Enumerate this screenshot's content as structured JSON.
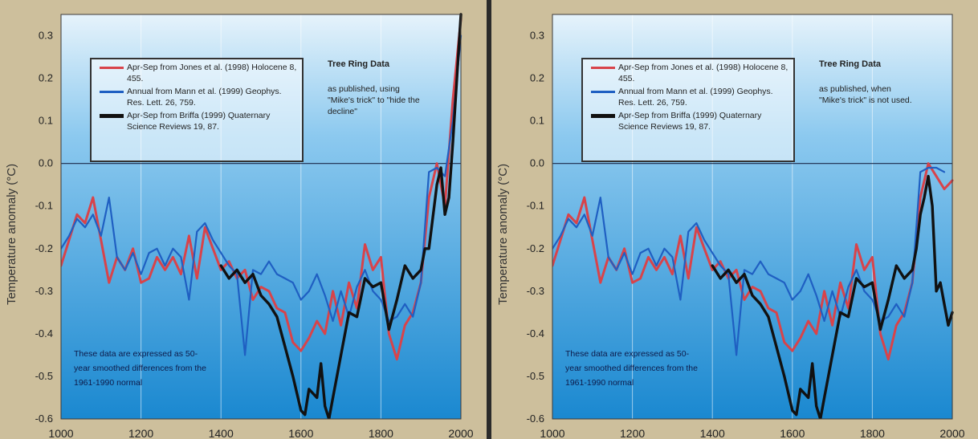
{
  "colors": {
    "jones": "#d8434a",
    "mann": "#1f5fc2",
    "briffa": "#111111",
    "plot_bg_top": "#e6f3fb",
    "plot_bg_bottom": "#1a88d0",
    "frame": "#cdbf9c"
  },
  "chart_data": [
    {
      "type": "line",
      "title": "Tree Ring Data",
      "subtitle": "as published, using \"Mike's trick\" to \"hide the decline\"",
      "ylabel": "Temperature anomaly (°C)",
      "xlabel": "",
      "xlim": [
        1000,
        2000
      ],
      "ylim": [
        -0.6,
        0.35
      ],
      "grid": true,
      "legend_position": "top-left",
      "x_ticks": [
        "1000",
        "1200",
        "1400",
        "1600",
        "1800",
        "2000"
      ],
      "y_ticks": [
        "0.3",
        "0.2",
        "0.1",
        "0.0",
        "-0.1",
        "-0.2",
        "-0.3",
        "-0.4",
        "-0.5",
        "-0.6"
      ],
      "legend": [
        "Apr-Sep from Jones et al. (1998) Holocene 8, 455.",
        "Annual from Mann et al. (1999) Geophys. Res. Lett. 26, 759.",
        "Apr-Sep from Briffa (1999) Quaternary Science Reviews 19, 87."
      ],
      "note": "These data are expressed as 50-year smoothed differences from the 1961-1990 normal",
      "series": [
        {
          "x": [
            1000,
            1020,
            1040,
            1060,
            1080,
            1100,
            1120,
            1140,
            1160,
            1180,
            1200,
            1220,
            1240,
            1260,
            1280,
            1300,
            1320,
            1340,
            1360,
            1380,
            1400,
            1420,
            1440,
            1460,
            1480,
            1500,
            1520,
            1540,
            1560,
            1580,
            1600,
            1620,
            1640,
            1660,
            1680,
            1700,
            1720,
            1740,
            1760,
            1780,
            1800,
            1820,
            1840,
            1860,
            1880,
            1900,
            1920,
            1940,
            1960,
            1980,
            2000
          ],
          "values": [
            -0.24,
            -0.18,
            -0.12,
            -0.14,
            -0.08,
            -0.18,
            -0.28,
            -0.22,
            -0.25,
            -0.2,
            -0.28,
            -0.27,
            -0.22,
            -0.25,
            -0.22,
            -0.26,
            -0.17,
            -0.27,
            -0.15,
            -0.2,
            -0.25,
            -0.23,
            -0.27,
            -0.25,
            -0.32,
            -0.29,
            -0.3,
            -0.34,
            -0.35,
            -0.42,
            -0.44,
            -0.41,
            -0.37,
            -0.4,
            -0.3,
            -0.38,
            -0.28,
            -0.34,
            -0.19,
            -0.25,
            -0.22,
            -0.4,
            -0.46,
            -0.38,
            -0.35,
            -0.28,
            -0.08,
            0.0,
            -0.1,
            0.15,
            0.34
          ]
        },
        {
          "x": [
            1000,
            1020,
            1040,
            1060,
            1080,
            1100,
            1120,
            1140,
            1160,
            1180,
            1200,
            1220,
            1240,
            1260,
            1280,
            1300,
            1320,
            1340,
            1360,
            1380,
            1400,
            1420,
            1440,
            1460,
            1480,
            1500,
            1520,
            1540,
            1560,
            1580,
            1600,
            1620,
            1640,
            1660,
            1680,
            1700,
            1720,
            1740,
            1760,
            1780,
            1800,
            1820,
            1840,
            1860,
            1880,
            1900,
            1920,
            1940,
            1960,
            1980,
            2000
          ],
          "values": [
            -0.2,
            -0.17,
            -0.13,
            -0.15,
            -0.12,
            -0.17,
            -0.08,
            -0.22,
            -0.25,
            -0.21,
            -0.26,
            -0.21,
            -0.2,
            -0.24,
            -0.2,
            -0.22,
            -0.32,
            -0.16,
            -0.14,
            -0.18,
            -0.21,
            -0.24,
            -0.26,
            -0.45,
            -0.25,
            -0.26,
            -0.23,
            -0.26,
            -0.27,
            -0.28,
            -0.32,
            -0.3,
            -0.26,
            -0.31,
            -0.37,
            -0.3,
            -0.36,
            -0.29,
            -0.25,
            -0.3,
            -0.32,
            -0.37,
            -0.36,
            -0.33,
            -0.36,
            -0.28,
            -0.02,
            -0.01,
            -0.03,
            0.1,
            0.3
          ]
        },
        {
          "x": [
            1400,
            1420,
            1440,
            1460,
            1480,
            1500,
            1520,
            1540,
            1560,
            1580,
            1600,
            1610,
            1620,
            1640,
            1650,
            1660,
            1670,
            1680,
            1700,
            1720,
            1740,
            1760,
            1780,
            1800,
            1820,
            1840,
            1860,
            1880,
            1900,
            1910,
            1920,
            1940,
            1950,
            1960,
            1970,
            1980,
            2000
          ],
          "values": [
            -0.24,
            -0.27,
            -0.25,
            -0.28,
            -0.26,
            -0.31,
            -0.33,
            -0.36,
            -0.43,
            -0.5,
            -0.58,
            -0.59,
            -0.53,
            -0.55,
            -0.47,
            -0.57,
            -0.6,
            -0.55,
            -0.45,
            -0.35,
            -0.36,
            -0.27,
            -0.29,
            -0.28,
            -0.39,
            -0.32,
            -0.24,
            -0.27,
            -0.25,
            -0.2,
            -0.2,
            -0.05,
            -0.01,
            -0.12,
            -0.08,
            0.05,
            0.35
          ]
        }
      ]
    },
    {
      "type": "line",
      "title": "Tree Ring Data",
      "subtitle": "as published, when \"Mike's trick\" is not used.",
      "ylabel": "Temperature anomaly (°C)",
      "xlabel": "",
      "xlim": [
        1000,
        2000
      ],
      "ylim": [
        -0.6,
        0.35
      ],
      "grid": true,
      "legend_position": "top-left",
      "x_ticks": [
        "1000",
        "1200",
        "1400",
        "1600",
        "1800",
        "2000"
      ],
      "y_ticks": [
        "0.3",
        "0.2",
        "0.1",
        "0.0",
        "-0.1",
        "-0.2",
        "-0.3",
        "-0.4",
        "-0.5",
        "-0.6"
      ],
      "legend": [
        "Apr-Sep from Jones et al. (1998) Holocene 8, 455.",
        "Annual from Mann et al. (1999) Geophys. Res. Lett. 26, 759.",
        "Apr-Sep from Briffa (1999) Quaternary Science Reviews 19, 87."
      ],
      "note": "These data are expressed as 50-year smoothed differences from the 1961-1990 normal",
      "series": [
        {
          "x": [
            1000,
            1020,
            1040,
            1060,
            1080,
            1100,
            1120,
            1140,
            1160,
            1180,
            1200,
            1220,
            1240,
            1260,
            1280,
            1300,
            1320,
            1340,
            1360,
            1380,
            1400,
            1420,
            1440,
            1460,
            1480,
            1500,
            1520,
            1540,
            1560,
            1580,
            1600,
            1620,
            1640,
            1660,
            1680,
            1700,
            1720,
            1740,
            1760,
            1780,
            1800,
            1820,
            1840,
            1860,
            1880,
            1900,
            1920,
            1940,
            1960,
            1980,
            2000
          ],
          "values": [
            -0.24,
            -0.18,
            -0.12,
            -0.14,
            -0.08,
            -0.18,
            -0.28,
            -0.22,
            -0.25,
            -0.2,
            -0.28,
            -0.27,
            -0.22,
            -0.25,
            -0.22,
            -0.26,
            -0.17,
            -0.27,
            -0.15,
            -0.2,
            -0.25,
            -0.23,
            -0.27,
            -0.25,
            -0.32,
            -0.29,
            -0.3,
            -0.34,
            -0.35,
            -0.42,
            -0.44,
            -0.41,
            -0.37,
            -0.4,
            -0.3,
            -0.38,
            -0.28,
            -0.34,
            -0.19,
            -0.25,
            -0.22,
            -0.4,
            -0.46,
            -0.38,
            -0.35,
            -0.28,
            -0.08,
            0.0,
            -0.03,
            -0.06,
            -0.04
          ]
        },
        {
          "x": [
            1000,
            1020,
            1040,
            1060,
            1080,
            1100,
            1120,
            1140,
            1160,
            1180,
            1200,
            1220,
            1240,
            1260,
            1280,
            1300,
            1320,
            1340,
            1360,
            1380,
            1400,
            1420,
            1440,
            1460,
            1480,
            1500,
            1520,
            1540,
            1560,
            1580,
            1600,
            1620,
            1640,
            1660,
            1680,
            1700,
            1720,
            1740,
            1760,
            1780,
            1800,
            1820,
            1840,
            1860,
            1880,
            1900,
            1920,
            1940,
            1960,
            1980
          ],
          "values": [
            -0.2,
            -0.17,
            -0.13,
            -0.15,
            -0.12,
            -0.17,
            -0.08,
            -0.22,
            -0.25,
            -0.21,
            -0.26,
            -0.21,
            -0.2,
            -0.24,
            -0.2,
            -0.22,
            -0.32,
            -0.16,
            -0.14,
            -0.18,
            -0.21,
            -0.24,
            -0.26,
            -0.45,
            -0.25,
            -0.26,
            -0.23,
            -0.26,
            -0.27,
            -0.28,
            -0.32,
            -0.3,
            -0.26,
            -0.31,
            -0.37,
            -0.3,
            -0.36,
            -0.29,
            -0.25,
            -0.3,
            -0.32,
            -0.37,
            -0.36,
            -0.33,
            -0.36,
            -0.28,
            -0.02,
            -0.01,
            -0.01,
            -0.02
          ]
        },
        {
          "x": [
            1400,
            1420,
            1440,
            1460,
            1480,
            1500,
            1520,
            1540,
            1560,
            1580,
            1600,
            1610,
            1620,
            1640,
            1650,
            1660,
            1670,
            1680,
            1700,
            1720,
            1740,
            1760,
            1780,
            1800,
            1820,
            1840,
            1860,
            1880,
            1900,
            1910,
            1920,
            1930,
            1940,
            1950,
            1960,
            1970,
            1980,
            1990,
            2000
          ],
          "values": [
            -0.24,
            -0.27,
            -0.25,
            -0.28,
            -0.26,
            -0.31,
            -0.33,
            -0.36,
            -0.43,
            -0.5,
            -0.58,
            -0.59,
            -0.53,
            -0.55,
            -0.47,
            -0.57,
            -0.6,
            -0.55,
            -0.45,
            -0.35,
            -0.36,
            -0.27,
            -0.29,
            -0.28,
            -0.39,
            -0.32,
            -0.24,
            -0.27,
            -0.25,
            -0.2,
            -0.12,
            -0.08,
            -0.03,
            -0.1,
            -0.3,
            -0.28,
            -0.33,
            -0.38,
            -0.35
          ]
        }
      ]
    }
  ]
}
